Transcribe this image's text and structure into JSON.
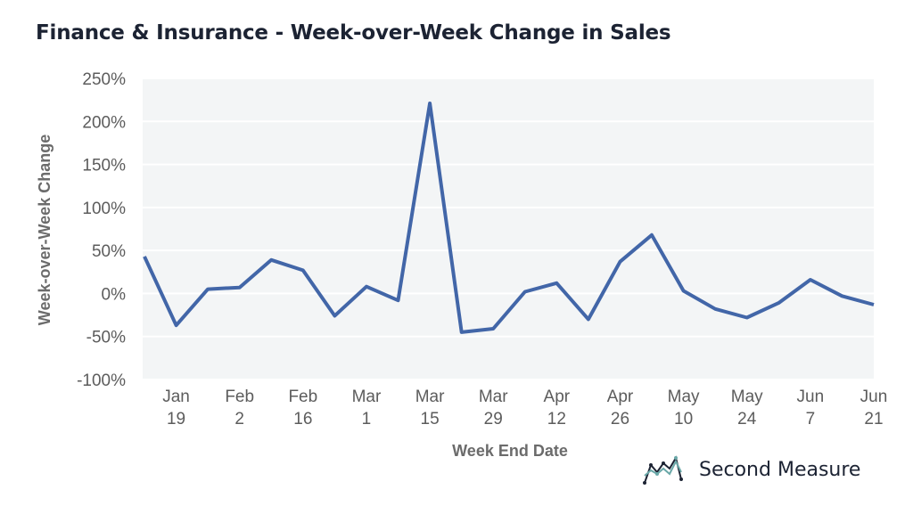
{
  "page": {
    "title": "Finance & Insurance - Week-over-Week Change in Sales"
  },
  "brand": {
    "name": "Second Measure",
    "logo_icon": "chart-logo-icon"
  },
  "colors": {
    "line": "#4266a8",
    "plot_bg": "#f3f5f6",
    "grid": "#ffffff"
  },
  "chart_data": {
    "type": "line",
    "title": "Finance & Insurance - Week-over-Week Change in Sales",
    "xlabel": "Week End Date",
    "ylabel": "Week-over-Week Change",
    "ylim": [
      -100,
      250
    ],
    "yticks": [
      250,
      200,
      150,
      100,
      50,
      0,
      -50,
      -100
    ],
    "ytick_labels": [
      "250%",
      "200%",
      "150%",
      "100%",
      "50%",
      "0%",
      "-50%",
      "-100%"
    ],
    "x_tick_labels": [
      [
        "Jan",
        "19"
      ],
      [
        "Feb",
        "2"
      ],
      [
        "Feb",
        "16"
      ],
      [
        "Mar",
        "1"
      ],
      [
        "Mar",
        "15"
      ],
      [
        "Mar",
        "29"
      ],
      [
        "Apr",
        "12"
      ],
      [
        "Apr",
        "26"
      ],
      [
        "May",
        "10"
      ],
      [
        "May",
        "24"
      ],
      [
        "Jun",
        "7"
      ],
      [
        "Jun",
        "21"
      ]
    ],
    "series": [
      {
        "x": [
          "Jan 12",
          "Jan 19",
          "Jan 26",
          "Feb 2",
          "Feb 9",
          "Feb 16",
          "Feb 23",
          "Mar 1",
          "Mar 8",
          "Mar 15",
          "Mar 22",
          "Mar 29",
          "Apr 5",
          "Apr 12",
          "Apr 19",
          "Apr 26",
          "May 3",
          "May 10",
          "May 17",
          "May 24",
          "May 31",
          "Jun 7",
          "Jun 14",
          "Jun 21"
        ],
        "values": [
          43,
          -37,
          5,
          7,
          39,
          27,
          -26,
          8,
          -8,
          221,
          -45,
          -41,
          2,
          12,
          -30,
          37,
          68,
          3,
          -18,
          -28,
          -11,
          16,
          -3,
          -13
        ]
      }
    ],
    "grid": true,
    "legend": "none"
  }
}
